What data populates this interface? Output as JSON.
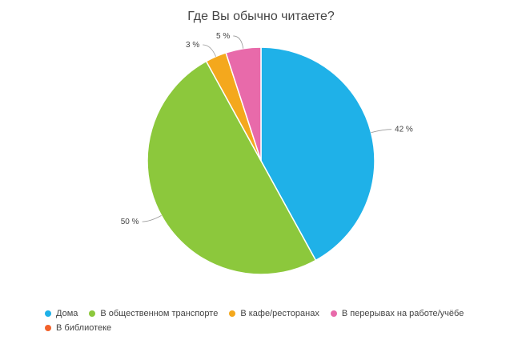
{
  "chart_data": {
    "type": "pie",
    "title": "Где Вы обычно читаете?",
    "label_suffix": " %",
    "slices": [
      {
        "name": "Дома",
        "value": 42,
        "color": "#1fb1e8"
      },
      {
        "name": "В общественном транспорте",
        "value": 50,
        "color": "#8cc83c"
      },
      {
        "name": "В кафе/ресторанах",
        "value": 3,
        "color": "#f4a81d"
      },
      {
        "name": "В перерывах на работе/учёбе",
        "value": 5,
        "color": "#e86aaa"
      },
      {
        "name": "В библиотеке",
        "value": 0,
        "color": "#f2622b"
      }
    ],
    "legend_position": "bottom-left",
    "grid": false
  }
}
